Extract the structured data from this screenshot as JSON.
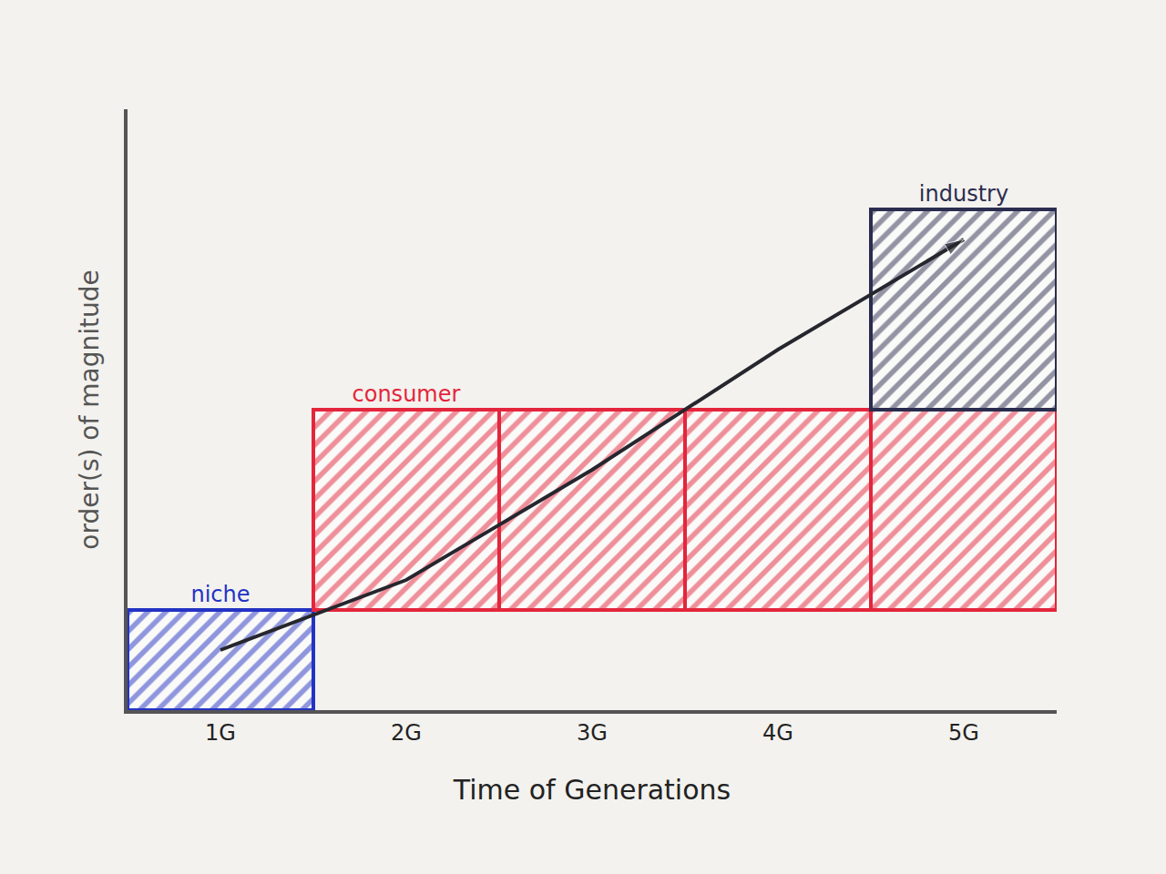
{
  "chart_data": {
    "type": "bar",
    "x_label": "Time of Generations",
    "y_label": "order(s) of magnitude",
    "categories": [
      "1G",
      "2G",
      "3G",
      "4G",
      "5G"
    ],
    "ylim": [
      0,
      6
    ],
    "tick_labels": "x",
    "series": [
      {
        "name": "niche",
        "color": "#2333c4",
        "values": [
          1,
          null,
          null,
          null,
          null
        ],
        "base": [
          0,
          null,
          null,
          null,
          null
        ]
      },
      {
        "name": "consumer",
        "color": "#e3263c",
        "values": [
          null,
          2,
          2,
          2,
          2
        ],
        "base": [
          null,
          1,
          1,
          1,
          1
        ]
      },
      {
        "name": "industry",
        "color": "#2b2d4f",
        "values": [
          null,
          null,
          null,
          null,
          2
        ],
        "base": [
          null,
          null,
          null,
          null,
          3
        ]
      },
      {
        "type": "line",
        "color": "#26262e",
        "marker": "arrow",
        "values": [
          0.6,
          1.3,
          2.4,
          3.6,
          4.7
        ]
      }
    ]
  }
}
